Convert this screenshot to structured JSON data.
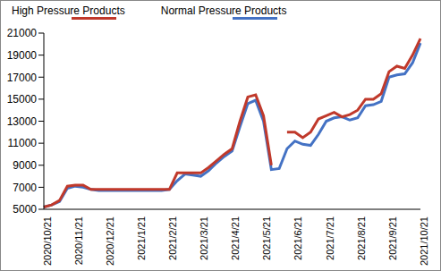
{
  "chart_data": {
    "type": "line",
    "categories": [
      "2020/10/21",
      null,
      null,
      null,
      "2020/11/21",
      null,
      null,
      null,
      "2020/12/21",
      null,
      null,
      null,
      "2021/1/21",
      null,
      null,
      null,
      "2021/2/21",
      null,
      null,
      null,
      "2021/3/21",
      null,
      null,
      null,
      "2021/4/21",
      null,
      null,
      null,
      "2021/5/21",
      null,
      null,
      null,
      "2021/6/21",
      null,
      null,
      null,
      "2021/7/21",
      null,
      null,
      null,
      "2021/8/21",
      null,
      null,
      null,
      "2021/9/21",
      null,
      null,
      null,
      "2021/10/21"
    ],
    "series": [
      {
        "name": "Normal Pressure Products",
        "color": "#4472c4",
        "values": [
          5200,
          5400,
          5700,
          6900,
          7100,
          7000,
          6800,
          6700,
          6700,
          6700,
          6700,
          6700,
          6700,
          6700,
          6700,
          6700,
          6800,
          7600,
          8200,
          8100,
          8000,
          8500,
          9200,
          9800,
          10300,
          12500,
          14600,
          14900,
          13000,
          8600,
          8700,
          10500,
          11200,
          10900,
          10800,
          11800,
          13000,
          13300,
          13400,
          13100,
          13300,
          14400,
          14500,
          14800,
          17000,
          17200,
          17300,
          18300,
          20100
        ]
      },
      {
        "name": "High Pressure Products",
        "color": "#c0392b",
        "values": [
          5200,
          5400,
          5800,
          7100,
          7200,
          7200,
          6800,
          6800,
          6800,
          6800,
          6800,
          6800,
          6800,
          6800,
          6800,
          6800,
          6800,
          8300,
          8300,
          8300,
          8300,
          8800,
          9400,
          10000,
          10500,
          13000,
          15200,
          15400,
          13500,
          9000,
          null,
          12000,
          12000,
          11500,
          12000,
          13200,
          13500,
          13800,
          13400,
          13600,
          14000,
          15000,
          15000,
          15500,
          17500,
          18000,
          17800,
          19000,
          20500
        ]
      }
    ],
    "ylim": [
      5000,
      21000
    ],
    "yticks": [
      5000,
      7000,
      9000,
      11000,
      13000,
      15000,
      17000,
      19000,
      21000
    ],
    "grid": false,
    "legend": "top"
  }
}
